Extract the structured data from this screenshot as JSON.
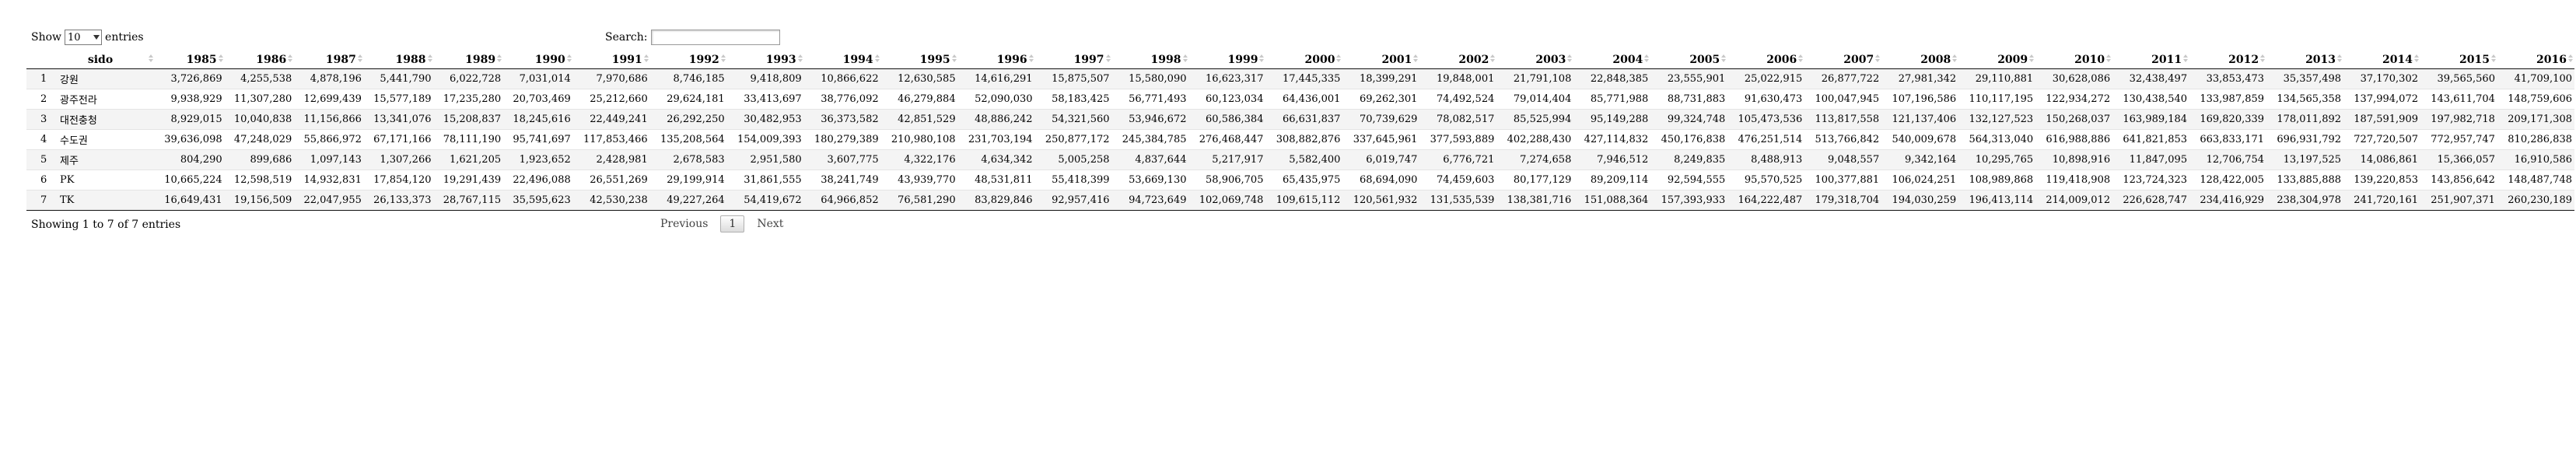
{
  "controls": {
    "show_label": "Show",
    "page_size": "10",
    "entries_label": "entries",
    "search_label": "Search:",
    "search_value": ""
  },
  "table": {
    "columns": [
      "",
      "sido",
      "1985",
      "1986",
      "1987",
      "1988",
      "1989",
      "1990",
      "1991",
      "1992",
      "1993",
      "1994",
      "1995",
      "1996",
      "1997",
      "1998",
      "1999",
      "2000",
      "2001",
      "2002",
      "2003",
      "2004",
      "2005",
      "2006",
      "2007",
      "2008",
      "2009",
      "2010",
      "2011",
      "2012",
      "2013",
      "2014",
      "2015",
      "2016"
    ],
    "rows": [
      [
        "1",
        "강원",
        "3,726,869",
        "4,255,538",
        "4,878,196",
        "5,441,790",
        "6,022,728",
        "7,031,014",
        "7,970,686",
        "8,746,185",
        "9,418,809",
        "10,866,622",
        "12,630,585",
        "14,616,291",
        "15,875,507",
        "15,580,090",
        "16,623,317",
        "17,445,335",
        "18,399,291",
        "19,848,001",
        "21,791,108",
        "22,848,385",
        "23,555,901",
        "25,022,915",
        "26,877,722",
        "27,981,342",
        "29,110,881",
        "30,628,086",
        "32,438,497",
        "33,853,473",
        "35,357,498",
        "37,170,302",
        "39,565,560",
        "41,709,100"
      ],
      [
        "2",
        "광주전라",
        "9,938,929",
        "11,307,280",
        "12,699,439",
        "15,577,189",
        "17,235,280",
        "20,703,469",
        "25,212,660",
        "29,624,181",
        "33,413,697",
        "38,776,092",
        "46,279,884",
        "52,090,030",
        "58,183,425",
        "56,771,493",
        "60,123,034",
        "64,436,001",
        "69,262,301",
        "74,492,524",
        "79,014,404",
        "85,771,988",
        "88,731,883",
        "91,630,473",
        "100,047,945",
        "107,196,586",
        "110,117,195",
        "122,934,272",
        "130,438,540",
        "133,987,859",
        "134,565,358",
        "137,994,072",
        "143,611,704",
        "148,759,606"
      ],
      [
        "3",
        "대전충청",
        "8,929,015",
        "10,040,838",
        "11,156,866",
        "13,341,076",
        "15,208,837",
        "18,245,616",
        "22,449,241",
        "26,292,250",
        "30,482,953",
        "36,373,582",
        "42,851,529",
        "48,886,242",
        "54,321,560",
        "53,946,672",
        "60,586,384",
        "66,631,837",
        "70,739,629",
        "78,082,517",
        "85,525,994",
        "95,149,288",
        "99,324,748",
        "105,473,536",
        "113,817,558",
        "121,137,406",
        "132,127,523",
        "150,268,037",
        "163,989,184",
        "169,820,339",
        "178,011,892",
        "187,591,909",
        "197,982,718",
        "209,171,308"
      ],
      [
        "4",
        "수도권",
        "39,636,098",
        "47,248,029",
        "55,866,972",
        "67,171,166",
        "78,111,190",
        "95,741,697",
        "117,853,466",
        "135,208,564",
        "154,009,393",
        "180,279,389",
        "210,980,108",
        "231,703,194",
        "250,877,172",
        "245,384,785",
        "276,468,447",
        "308,882,876",
        "337,645,961",
        "377,593,889",
        "402,288,430",
        "427,114,832",
        "450,176,838",
        "476,251,514",
        "513,766,842",
        "540,009,678",
        "564,313,040",
        "616,988,886",
        "641,821,853",
        "663,833,171",
        "696,931,792",
        "727,720,507",
        "772,957,747",
        "810,286,838"
      ],
      [
        "5",
        "제주",
        "804,290",
        "899,686",
        "1,097,143",
        "1,307,266",
        "1,621,205",
        "1,923,652",
        "2,428,981",
        "2,678,583",
        "2,951,580",
        "3,607,775",
        "4,322,176",
        "4,634,342",
        "5,005,258",
        "4,837,644",
        "5,217,917",
        "5,582,400",
        "6,019,747",
        "6,776,721",
        "7,274,658",
        "7,946,512",
        "8,249,835",
        "8,488,913",
        "9,048,557",
        "9,342,164",
        "10,295,765",
        "10,898,916",
        "11,847,095",
        "12,706,754",
        "13,197,525",
        "14,086,861",
        "15,366,057",
        "16,910,586"
      ],
      [
        "6",
        "PK",
        "10,665,224",
        "12,598,519",
        "14,932,831",
        "17,854,120",
        "19,291,439",
        "22,496,088",
        "26,551,269",
        "29,199,914",
        "31,861,555",
        "38,241,749",
        "43,939,770",
        "48,531,811",
        "55,418,399",
        "53,669,130",
        "58,906,705",
        "65,435,975",
        "68,694,090",
        "74,459,603",
        "80,177,129",
        "89,209,114",
        "92,594,555",
        "95,570,525",
        "100,377,881",
        "106,024,251",
        "108,989,868",
        "119,418,908",
        "123,724,323",
        "128,422,005",
        "133,885,888",
        "139,220,853",
        "143,856,642",
        "148,487,748"
      ],
      [
        "7",
        "TK",
        "16,649,431",
        "19,156,509",
        "22,047,955",
        "26,133,373",
        "28,767,115",
        "35,595,623",
        "42,530,238",
        "49,227,264",
        "54,419,672",
        "64,966,852",
        "76,581,290",
        "83,829,846",
        "92,957,416",
        "94,723,649",
        "102,069,748",
        "109,615,112",
        "120,561,932",
        "131,535,539",
        "138,381,716",
        "151,088,364",
        "157,393,933",
        "164,222,487",
        "179,318,704",
        "194,030,259",
        "196,413,114",
        "214,009,012",
        "226,628,747",
        "234,416,929",
        "238,304,978",
        "241,720,161",
        "251,907,371",
        "260,230,189"
      ]
    ]
  },
  "footer": {
    "info": "Showing 1 to 7 of 7 entries",
    "previous": "Previous",
    "current_page": "1",
    "next": "Next"
  }
}
